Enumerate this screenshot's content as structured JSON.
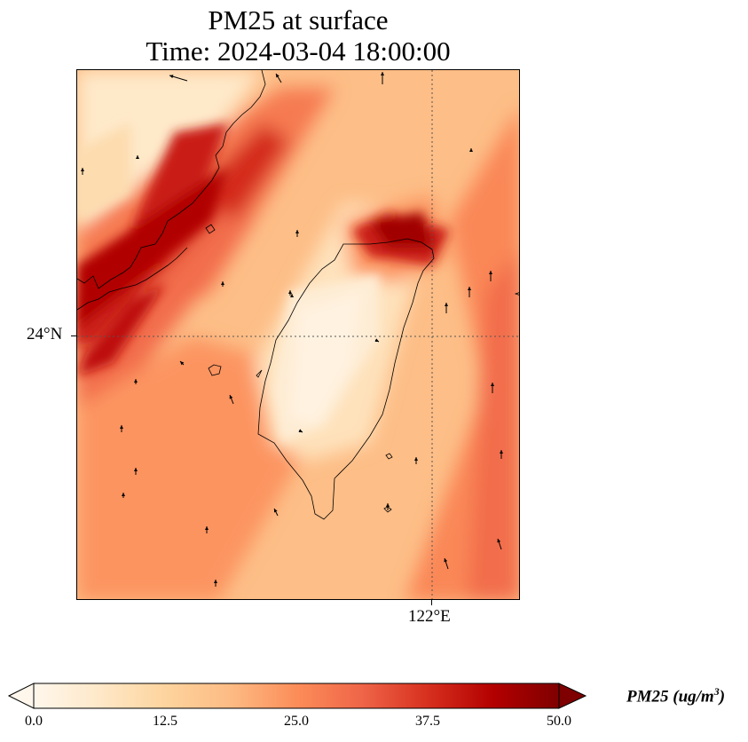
{
  "title": {
    "line1": "PM25 at surface",
    "line2": "Time: 2024-03-04 18:00:00"
  },
  "axes": {
    "lat_label": "24°N",
    "lon_label": "122°E",
    "gridlines": "dotted"
  },
  "colorbar": {
    "label_main": "PM25 (ug/m",
    "label_sup": "3",
    "label_end": ")",
    "ticks": [
      "0.0",
      "12.5",
      "25.0",
      "37.5",
      "50.0"
    ],
    "min": 0,
    "max": 50,
    "extend": "both",
    "colormap": "OrRd",
    "colors": [
      "#fff7ec",
      "#fee8c8",
      "#fdd49e",
      "#fdbb84",
      "#fc8d59",
      "#ef6548",
      "#d7301f",
      "#b30000",
      "#7f0000"
    ]
  },
  "map": {
    "background_value": 18,
    "features": [
      "Taiwan coastline",
      "China coastline",
      "wind vectors"
    ],
    "colors": {
      "coast": "#000000",
      "vector": "#000000"
    }
  }
}
